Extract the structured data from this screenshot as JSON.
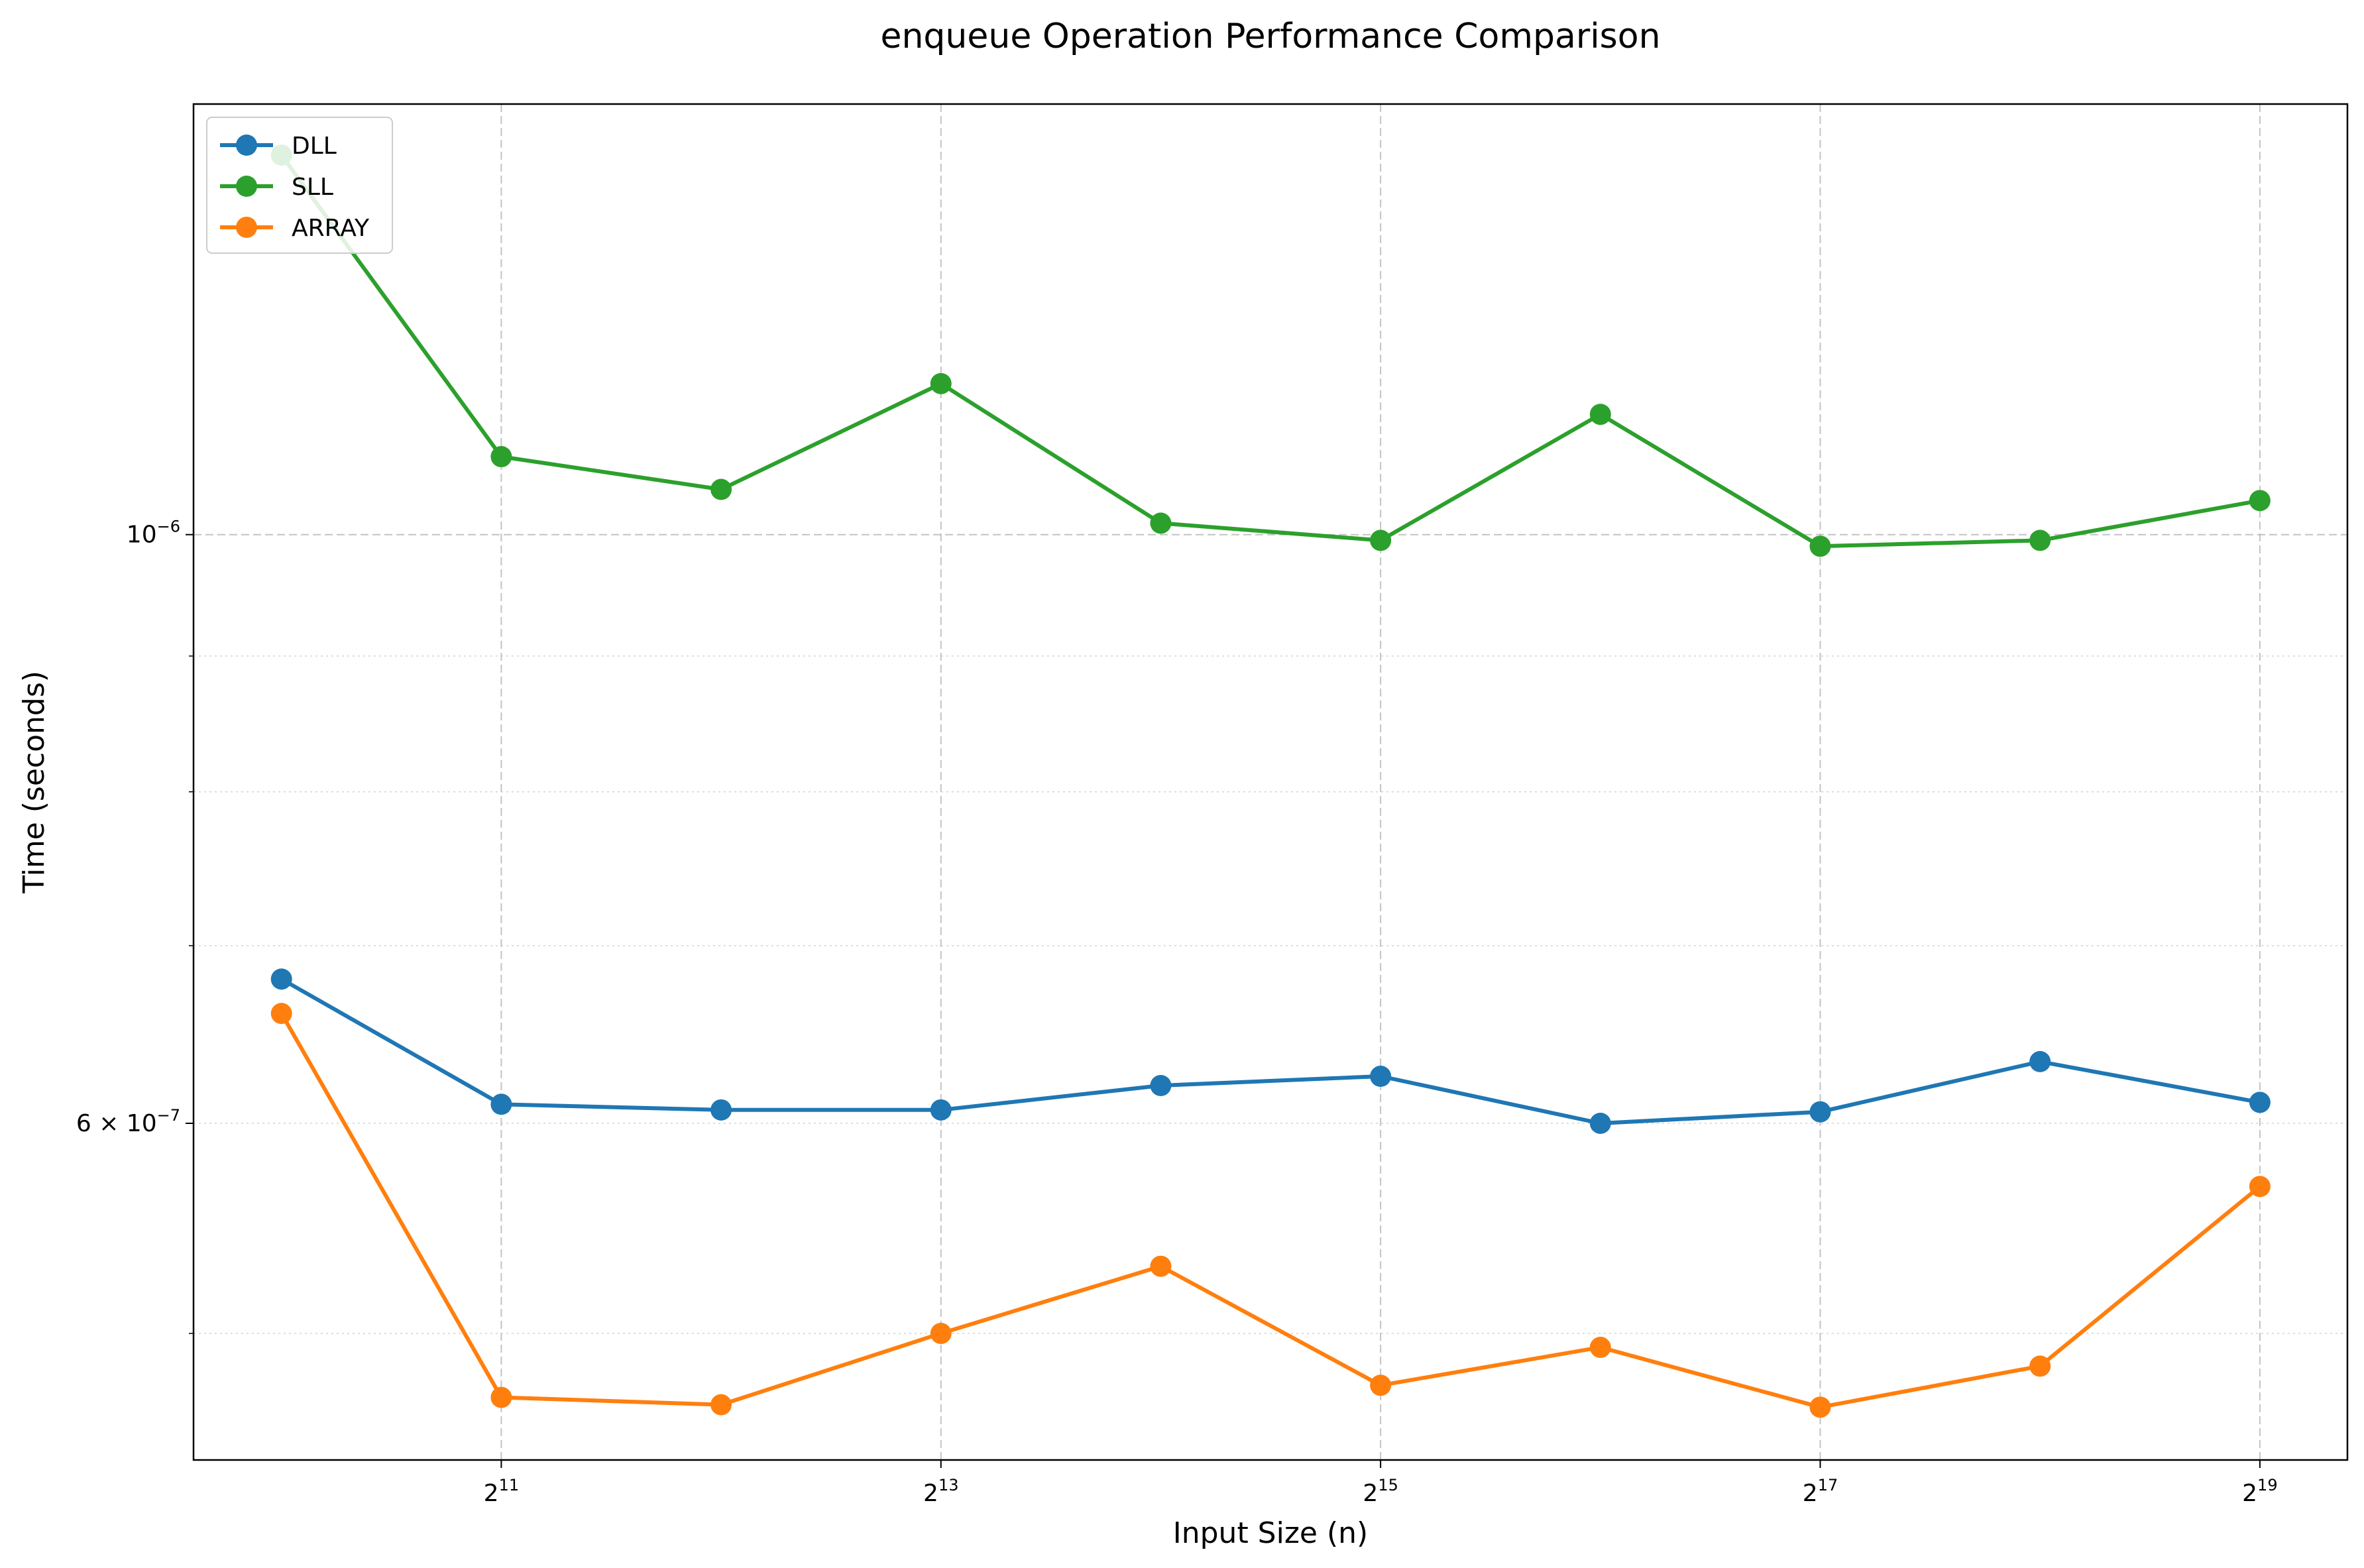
{
  "chart_data": {
    "type": "line",
    "title": "enqueue Operation Performance Comparison",
    "xlabel": "Input Size (n)",
    "ylabel": "Time (seconds)",
    "xscale": "log2",
    "yscale": "log",
    "x": [
      1024,
      2048,
      4096,
      8192,
      16384,
      32768,
      65536,
      131072,
      262144,
      524288
    ],
    "xticks": [
      {
        "base": "2",
        "exp": "11",
        "value": 2048
      },
      {
        "base": "2",
        "exp": "13",
        "value": 8192
      },
      {
        "base": "2",
        "exp": "15",
        "value": 32768
      },
      {
        "base": "2",
        "exp": "17",
        "value": 131072
      },
      {
        "base": "2",
        "exp": "19",
        "value": 524288
      }
    ],
    "yticks": [
      {
        "mantissa": "",
        "base": "10",
        "exp": "−6",
        "value": 1e-06
      },
      {
        "mantissa": "6 × ",
        "base": "10",
        "exp": "−7",
        "value": 6e-07
      }
    ],
    "xlim": [
      776,
      691000
    ],
    "ylim": [
      4.48e-07,
      1.453e-06
    ],
    "grid": true,
    "legend_position": "top-left",
    "series": [
      {
        "name": "DLL",
        "color": "#1f77b4",
        "values": [
          6.8e-07,
          6.1e-07,
          6.07e-07,
          6.07e-07,
          6.2e-07,
          6.25e-07,
          6e-07,
          6.06e-07,
          6.33e-07,
          6.11e-07
        ]
      },
      {
        "name": "SLL",
        "color": "#2ca02c",
        "values": [
          1.39e-06,
          1.07e-06,
          1.04e-06,
          1.14e-06,
          1.01e-06,
          9.95e-07,
          1.11e-06,
          9.9e-07,
          9.95e-07,
          1.03e-06
        ]
      },
      {
        "name": "ARRAY",
        "color": "#ff7f0e",
        "values": [
          6.6e-07,
          4.73e-07,
          4.7e-07,
          5e-07,
          5.3e-07,
          4.78e-07,
          4.94e-07,
          4.69e-07,
          4.86e-07,
          5.68e-07
        ]
      }
    ]
  }
}
